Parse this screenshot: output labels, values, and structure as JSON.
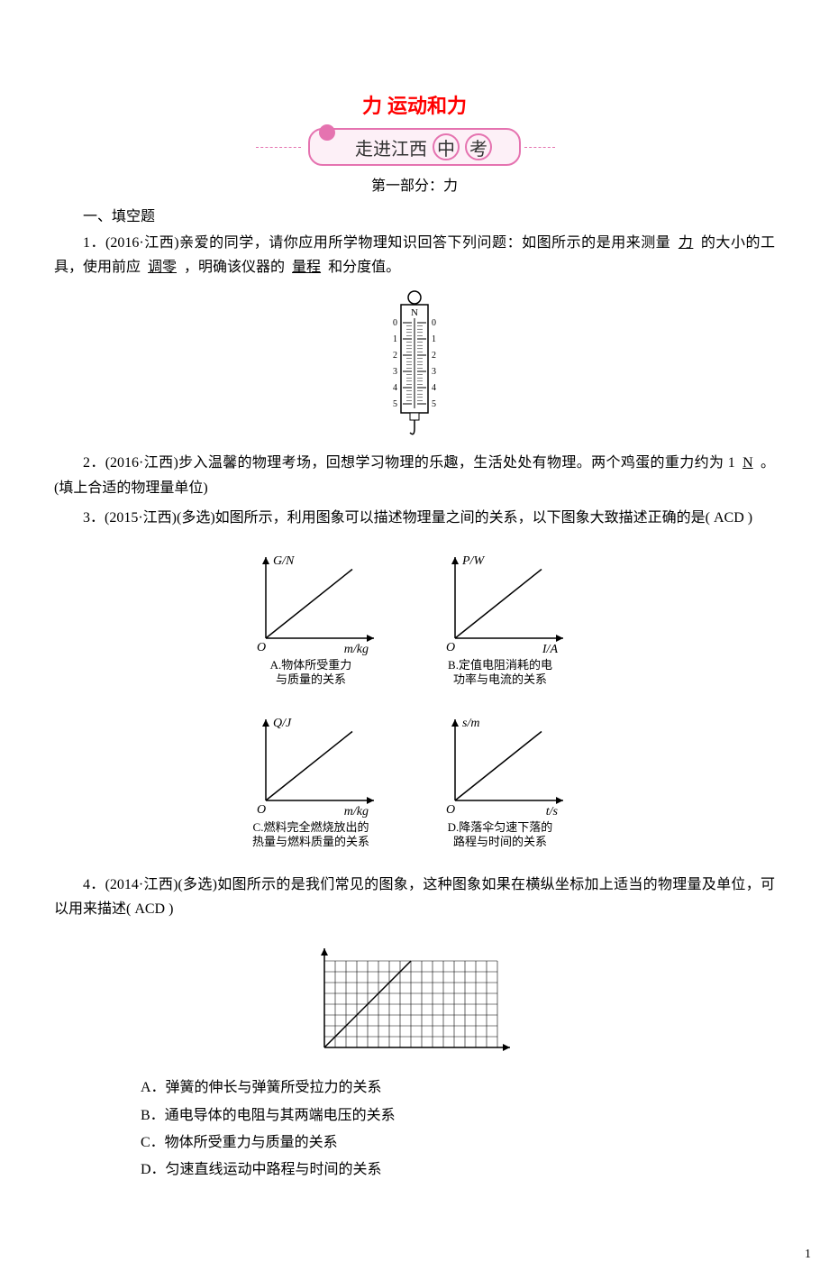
{
  "title": "力 运动和力",
  "banner": {
    "text_pre": "走进江西",
    "c1": "中",
    "c2": "考"
  },
  "subtitle": "第一部分：力",
  "section1": "一、填空题",
  "q1": {
    "prefix": "1．(2016·江西)亲爱的同学，请你应用所学物理知识回答下列问题：如图所示的是用来测量",
    "b1": "力",
    "mid1": "的大小的工具，使用前应",
    "b2": "调零",
    "mid2": "，明确该仪器的",
    "b3": "量程",
    "suffix": "和分度值。"
  },
  "spring_scale": {
    "ticks": [
      "0",
      "1",
      "2",
      "3",
      "4",
      "5"
    ],
    "unit": "N",
    "body_stroke": "#000000",
    "body_fill": "#ffffff"
  },
  "q2": {
    "prefix": "2．(2016·江西)步入温馨的物理考场，回想学习物理的乐趣，生活处处有物理。两个鸡蛋的重力约为 1",
    "b1": "N",
    "suffix": "。(填上合适的物理量单位)"
  },
  "q3": {
    "text": "3．(2015·江西)(多选)如图所示，利用图象可以描述物理量之间的关系，以下图象大致描述正确的是( ACD )",
    "charts": {
      "stroke": "#000000",
      "A": {
        "ylabel": "G/N",
        "xlabel": "m/kg",
        "caption1": "A.物体所受重力",
        "caption2": "与质量的关系"
      },
      "B": {
        "ylabel": "P/W",
        "xlabel": "I/A",
        "caption1": "B.定值电阻消耗的电",
        "caption2": "功率与电流的关系"
      },
      "C": {
        "ylabel": "Q/J",
        "xlabel": "m/kg",
        "caption1": "C.燃料完全燃烧放出的",
        "caption2": "热量与燃料质量的关系"
      },
      "D": {
        "ylabel": "s/m",
        "xlabel": "t/s",
        "caption1": "D.降落伞匀速下落的",
        "caption2": "路程与时间的关系"
      }
    }
  },
  "q4": {
    "text": "4．(2014·江西)(多选)如图所示的是我们常见的图象，这种图象如果在横纵坐标加上适当的物理量及单位，可以用来描述( ACD )",
    "grid": {
      "stroke": "#000000",
      "cols": 16,
      "rows": 8
    },
    "opts": {
      "A": "A．弹簧的伸长与弹簧所受拉力的关系",
      "B": "B．通电导体的电阻与其两端电压的关系",
      "C": "C．物体所受重力与质量的关系",
      "D": "D．匀速直线运动中路程与时间的关系"
    }
  },
  "page_num": "1"
}
